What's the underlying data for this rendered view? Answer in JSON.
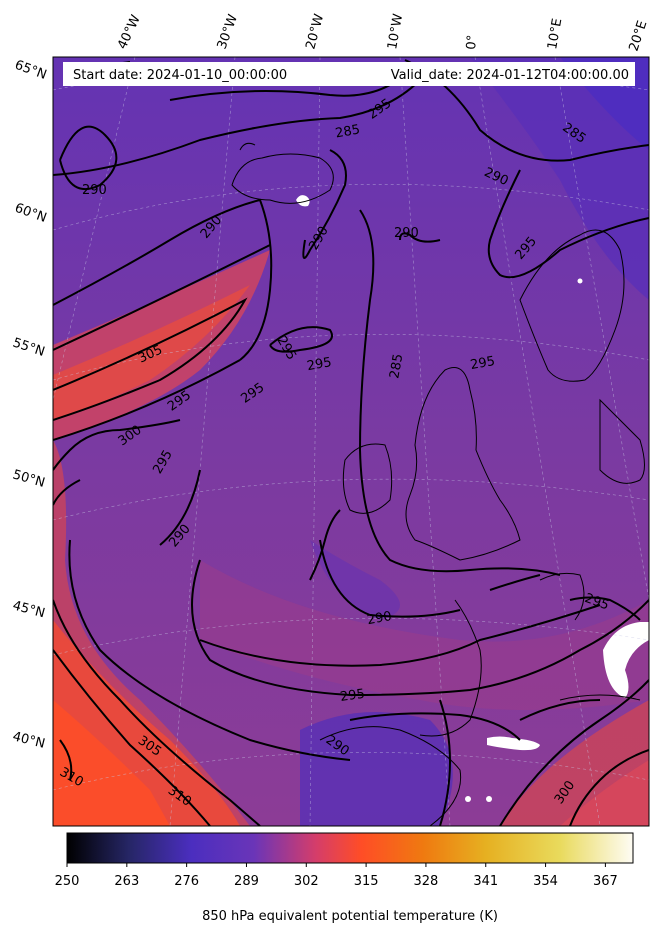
{
  "header": {
    "start_date": "Start date: 2024-01-10_00:00:00",
    "valid_date": "Valid_date: 2024-01-12T04:00:00.00"
  },
  "lon_labels": [
    "40°W",
    "30°W",
    "20°W",
    "10°W",
    "0°",
    "10°E",
    "20°E"
  ],
  "lat_labels": [
    "65°N",
    "60°N",
    "55°N",
    "50°N",
    "45°N",
    "40°N"
  ],
  "contour_labels": [
    "285",
    "295",
    "285",
    "290",
    "290",
    "290",
    "290",
    "290",
    "295",
    "295",
    "295",
    "305",
    "295",
    "300",
    "295",
    "290",
    "295",
    "285",
    "290",
    "295",
    "305",
    "310",
    "310",
    "300",
    "295",
    "290"
  ],
  "colorbar": {
    "label": "850 hPa equivalent potential temperature (K)",
    "ticks": [
      "250",
      "263",
      "276",
      "289",
      "302",
      "315",
      "328",
      "341",
      "354",
      "367"
    ],
    "min": 250,
    "max": 373,
    "colormap": "CMRmap",
    "stops": [
      "#000000",
      "#262666",
      "#4b2ebf",
      "#6a35b8",
      "#d53d6a",
      "#ff4d26",
      "#ef7a10",
      "#e6b021",
      "#e9da5c",
      "#fefcf4"
    ]
  },
  "colors": {
    "cold": "#5a30b0",
    "mid": "#8a3a98",
    "warm": "#e6483a",
    "hot": "#f8482c",
    "contour": "#000000"
  }
}
